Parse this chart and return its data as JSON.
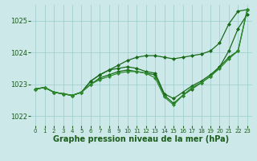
{
  "background_color": "#cce8e8",
  "grid_color": "#99cccc",
  "xlabel": "Graphe pression niveau de la mer (hPa)",
  "xlabel_fontsize": 7,
  "xlim": [
    -0.5,
    23.5
  ],
  "ylim": [
    1021.7,
    1025.5
  ],
  "yticks": [
    1022,
    1023,
    1024,
    1025
  ],
  "xticks": [
    0,
    1,
    2,
    3,
    4,
    5,
    6,
    7,
    8,
    9,
    10,
    11,
    12,
    13,
    14,
    15,
    16,
    17,
    18,
    19,
    20,
    21,
    22,
    23
  ],
  "series": [
    {
      "x": [
        0,
        1,
        2,
        3,
        4,
        5,
        6,
        7,
        8,
        9,
        10,
        11,
        12,
        13,
        14,
        15,
        16,
        17,
        18,
        19,
        20,
        21,
        22,
        23
      ],
      "y": [
        1022.85,
        1022.9,
        1022.75,
        1022.7,
        1022.65,
        1022.75,
        1023.1,
        1023.3,
        1023.45,
        1023.6,
        1023.75,
        1023.85,
        1023.9,
        1023.9,
        1023.85,
        1023.8,
        1023.85,
        1023.9,
        1023.95,
        1024.05,
        1024.3,
        1024.9,
        1025.3,
        1025.35
      ],
      "color": "#1a6b1a",
      "lw": 0.9,
      "marker": "D",
      "ms": 2.0
    },
    {
      "x": [
        0,
        1,
        2,
        3,
        4,
        5,
        6,
        7,
        8,
        9,
        10,
        11,
        12,
        13,
        14,
        15,
        16,
        17,
        18,
        19,
        20,
        21,
        22,
        23
      ],
      "y": [
        1022.85,
        1022.9,
        1022.75,
        1022.7,
        1022.65,
        1022.75,
        1023.1,
        1023.3,
        1023.45,
        1023.5,
        1023.55,
        1023.5,
        1023.4,
        1023.35,
        1022.7,
        1022.55,
        1022.75,
        1022.95,
        1023.1,
        1023.3,
        1023.55,
        1024.05,
        1024.75,
        1025.2
      ],
      "color": "#1a6b1a",
      "lw": 0.9,
      "marker": "D",
      "ms": 2.0
    },
    {
      "x": [
        0,
        1,
        2,
        3,
        4,
        5,
        6,
        7,
        8,
        9,
        10,
        11,
        12,
        13,
        14,
        15,
        16,
        17,
        18,
        19,
        20,
        21,
        22,
        23
      ],
      "y": [
        1022.85,
        1022.9,
        1022.75,
        1022.7,
        1022.65,
        1022.75,
        1023.0,
        1023.2,
        1023.3,
        1023.4,
        1023.45,
        1023.4,
        1023.35,
        1023.3,
        1022.65,
        1022.4,
        1022.65,
        1022.85,
        1023.05,
        1023.25,
        1023.55,
        1023.85,
        1024.05,
        1025.35
      ],
      "color": "#1a6b1a",
      "lw": 0.9,
      "marker": "D",
      "ms": 2.0
    },
    {
      "x": [
        0,
        1,
        2,
        3,
        4,
        5,
        6,
        7,
        8,
        9,
        10,
        11,
        12,
        13,
        14,
        15,
        16,
        17,
        18,
        19,
        20,
        21,
        22,
        23
      ],
      "y": [
        1022.85,
        1022.9,
        1022.75,
        1022.7,
        1022.65,
        1022.75,
        1023.0,
        1023.15,
        1023.25,
        1023.35,
        1023.4,
        1023.4,
        1023.35,
        1023.2,
        1022.6,
        1022.35,
        1022.65,
        1022.9,
        1023.05,
        1023.25,
        1023.5,
        1023.8,
        1024.05,
        1025.35
      ],
      "color": "#2d8b2d",
      "lw": 0.9,
      "marker": "D",
      "ms": 2.0
    }
  ]
}
